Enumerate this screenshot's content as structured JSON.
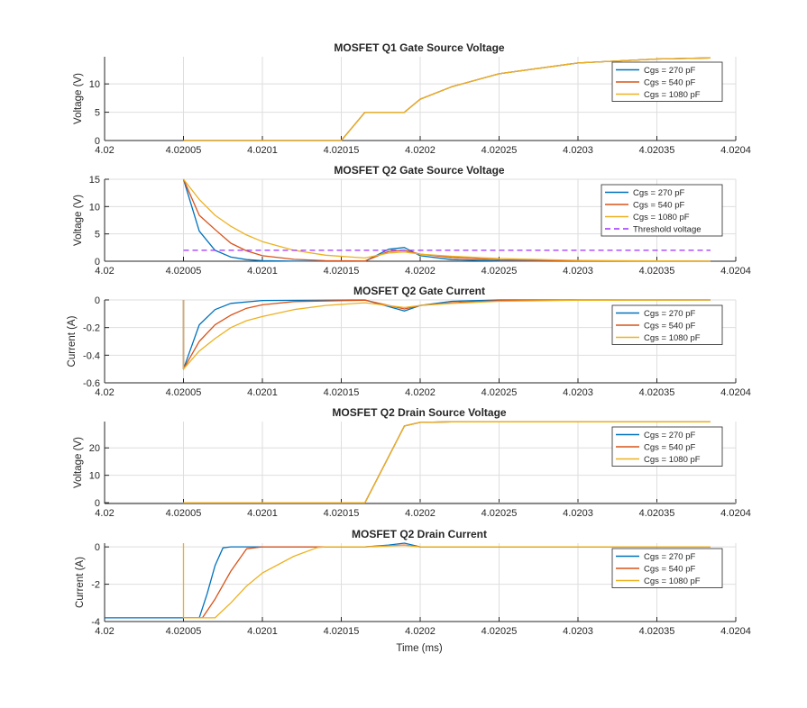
{
  "chart_data": [
    {
      "type": "line",
      "title": "MOSFET Q1 Gate Source Voltage",
      "xlabel": "",
      "ylabel": "Voltage (V)",
      "xlim": [
        4.02,
        4.0204
      ],
      "ylim": [
        0,
        14.8
      ],
      "xticks": [
        "4.02",
        "4.02005",
        "4.0201",
        "4.02015",
        "4.0202",
        "4.02025",
        "4.0203",
        "4.02035",
        "4.0204"
      ],
      "yticks": [
        "0",
        "5",
        "10"
      ],
      "grid": true,
      "legend": "top-right",
      "series": [
        {
          "name": "Cgs = 270 pF",
          "color": "#0072BD",
          "x": [
            4.02005,
            4.02015,
            4.020165,
            4.02019,
            4.0202,
            4.02022,
            4.02025,
            4.0203,
            4.02035,
            4.020384
          ],
          "y": [
            0,
            0,
            5,
            5,
            7.3,
            9.5,
            11.8,
            13.7,
            14.4,
            14.6
          ]
        },
        {
          "name": "Cgs = 540 pF",
          "color": "#D95319",
          "x": [
            4.02005,
            4.02015,
            4.020165,
            4.02019,
            4.0202,
            4.02022,
            4.02025,
            4.0203,
            4.02035,
            4.020384
          ],
          "y": [
            0,
            0,
            5,
            5,
            7.3,
            9.5,
            11.8,
            13.7,
            14.4,
            14.6
          ]
        },
        {
          "name": "Cgs = 1080 pF",
          "color": "#EDB120",
          "x": [
            4.02005,
            4.02015,
            4.020165,
            4.02019,
            4.0202,
            4.02022,
            4.02025,
            4.0203,
            4.02035,
            4.020384
          ],
          "y": [
            0,
            0,
            5,
            5,
            7.3,
            9.5,
            11.8,
            13.7,
            14.4,
            14.6
          ]
        }
      ]
    },
    {
      "type": "line",
      "title": "MOSFET Q2 Gate Source Voltage",
      "xlabel": "",
      "ylabel": "Voltage (V)",
      "xlim": [
        4.02,
        4.0204
      ],
      "ylim": [
        0,
        15
      ],
      "xticks": [
        "4.02",
        "4.02005",
        "4.0201",
        "4.02015",
        "4.0202",
        "4.02025",
        "4.0203",
        "4.02035",
        "4.0204"
      ],
      "yticks": [
        "0",
        "5",
        "10",
        "15"
      ],
      "grid": true,
      "legend": "top-right",
      "series": [
        {
          "name": "Cgs = 270 pF",
          "color": "#0072BD",
          "x": [
            4.02005,
            4.02006,
            4.02007,
            4.02008,
            4.02009,
            4.0201,
            4.02012,
            4.020165,
            4.02018,
            4.02019,
            4.0202,
            4.02022,
            4.02025,
            4.0203,
            4.020384
          ],
          "y": [
            15,
            5.5,
            2.0,
            0.75,
            0.3,
            0.1,
            0.02,
            0,
            2.2,
            2.5,
            1.0,
            0.3,
            0.05,
            0,
            0
          ]
        },
        {
          "name": "Cgs = 540 pF",
          "color": "#D95319",
          "x": [
            4.02005,
            4.02006,
            4.02007,
            4.02008,
            4.02009,
            4.0201,
            4.02012,
            4.02014,
            4.020165,
            4.02018,
            4.02019,
            4.0202,
            4.02022,
            4.02025,
            4.0203,
            4.020384
          ],
          "y": [
            15,
            8.4,
            5.8,
            3.3,
            1.9,
            1.0,
            0.35,
            0.1,
            0.03,
            1.8,
            2.0,
            1.3,
            0.7,
            0.25,
            0.05,
            0
          ]
        },
        {
          "name": "Cgs = 1080 pF",
          "color": "#EDB120",
          "x": [
            4.02005,
            4.02006,
            4.02007,
            4.02008,
            4.02009,
            4.0201,
            4.02012,
            4.02014,
            4.020165,
            4.02018,
            4.02019,
            4.0202,
            4.02022,
            4.02025,
            4.0203,
            4.02035,
            4.020384
          ],
          "y": [
            15,
            11.3,
            8.4,
            6.4,
            4.8,
            3.6,
            2.0,
            1.1,
            0.6,
            1.5,
            1.7,
            1.3,
            0.9,
            0.5,
            0.15,
            0.05,
            0.02
          ]
        },
        {
          "name": "Threshold voltage",
          "color": "#9B30FF",
          "dashed": true,
          "x": [
            4.02005,
            4.020384
          ],
          "y": [
            2,
            2
          ]
        }
      ]
    },
    {
      "type": "line",
      "title": "MOSFET Q2 Gate Current",
      "xlabel": "",
      "ylabel": "Current (A)",
      "xlim": [
        4.02,
        4.0204
      ],
      "ylim": [
        -0.6,
        0
      ],
      "xticks": [
        "4.02",
        "4.02005",
        "4.0201",
        "4.02015",
        "4.0202",
        "4.02025",
        "4.0203",
        "4.02035",
        "4.0204"
      ],
      "yticks": [
        "-0.6",
        "-0.4",
        "-0.2",
        "0"
      ],
      "grid": true,
      "legend": "top-right",
      "series": [
        {
          "name": "Cgs = 270 pF",
          "color": "#0072BD",
          "x": [
            4.02005,
            4.02005,
            4.02006,
            4.02007,
            4.02008,
            4.0201,
            4.020165,
            4.02019,
            4.0202,
            4.02022,
            4.02025,
            4.020384
          ],
          "y": [
            0,
            -0.5,
            -0.18,
            -0.07,
            -0.025,
            -0.004,
            0,
            -0.08,
            -0.04,
            -0.01,
            0,
            0
          ]
        },
        {
          "name": "Cgs = 540 pF",
          "color": "#D95319",
          "x": [
            4.02005,
            4.02005,
            4.02006,
            4.02007,
            4.02008,
            4.02009,
            4.0201,
            4.02012,
            4.020165,
            4.02019,
            4.0202,
            4.02022,
            4.02025,
            4.0203,
            4.020384
          ],
          "y": [
            0,
            -0.5,
            -0.3,
            -0.18,
            -0.11,
            -0.06,
            -0.035,
            -0.012,
            -0.002,
            -0.065,
            -0.04,
            -0.02,
            -0.005,
            0,
            0
          ]
        },
        {
          "name": "Cgs = 1080 pF",
          "color": "#EDB120",
          "x": [
            4.02005,
            4.02005,
            4.02006,
            4.02007,
            4.02008,
            4.02009,
            4.0201,
            4.02012,
            4.02014,
            4.020165,
            4.02019,
            4.0202,
            4.02022,
            4.02025,
            4.0203,
            4.020384
          ],
          "y": [
            0,
            -0.5,
            -0.37,
            -0.28,
            -0.2,
            -0.15,
            -0.12,
            -0.07,
            -0.04,
            -0.02,
            -0.055,
            -0.04,
            -0.025,
            -0.01,
            -0.002,
            0
          ]
        }
      ]
    },
    {
      "type": "line",
      "title": "MOSFET Q2 Drain Source Voltage",
      "xlabel": "",
      "ylabel": "Voltage (V)",
      "xlim": [
        4.02,
        4.0204
      ],
      "ylim": [
        -0.3,
        29.6
      ],
      "xticks": [
        "4.02",
        "4.02005",
        "4.0201",
        "4.02015",
        "4.0202",
        "4.02025",
        "4.0203",
        "4.02035",
        "4.0204"
      ],
      "yticks": [
        "0",
        "10",
        "20"
      ],
      "grid": true,
      "legend": "top-right",
      "series": [
        {
          "name": "Cgs = 270 pF",
          "color": "#0072BD",
          "x": [
            4.02005,
            4.020165,
            4.02019,
            4.0202,
            4.02022,
            4.020384
          ],
          "y": [
            0,
            0,
            28,
            29.3,
            29.5,
            29.5
          ]
        },
        {
          "name": "Cgs = 540 pF",
          "color": "#D95319",
          "x": [
            4.02005,
            4.020165,
            4.02019,
            4.0202,
            4.02022,
            4.020384
          ],
          "y": [
            0,
            0,
            28,
            29.3,
            29.5,
            29.5
          ]
        },
        {
          "name": "Cgs = 1080 pF",
          "color": "#EDB120",
          "x": [
            4.02005,
            4.020165,
            4.02019,
            4.0202,
            4.02022,
            4.020384
          ],
          "y": [
            0,
            0,
            28,
            29.3,
            29.5,
            29.5
          ]
        }
      ]
    },
    {
      "type": "line",
      "title": "MOSFET Q2 Drain Current",
      "xlabel": "Time (ms)",
      "ylabel": "Current (A)",
      "xlim": [
        4.02,
        4.0204
      ],
      "ylim": [
        -4,
        0.2
      ],
      "xticks": [
        "4.02",
        "4.02005",
        "4.0201",
        "4.02015",
        "4.0202",
        "4.02025",
        "4.0203",
        "4.02035",
        "4.0204"
      ],
      "yticks": [
        "-4",
        "-2",
        "0"
      ],
      "grid": true,
      "legend": "top-right",
      "series": [
        {
          "name": "Cgs = 270 pF",
          "color": "#0072BD",
          "x": [
            4.02,
            4.02006,
            4.020065,
            4.02007,
            4.020075,
            4.02008,
            4.020165,
            4.02018,
            4.02019,
            4.0202,
            4.020384
          ],
          "y": [
            -3.8,
            -3.8,
            -2.5,
            -1.0,
            -0.05,
            0,
            0,
            0.1,
            0.2,
            0,
            0
          ]
        },
        {
          "name": "Cgs = 540 pF",
          "color": "#D95319",
          "x": [
            4.02005,
            4.020062,
            4.02007,
            4.02008,
            4.02009,
            4.0201,
            4.020165,
            4.02019,
            4.0202,
            4.020384
          ],
          "y": [
            -3.8,
            -3.8,
            -2.8,
            -1.3,
            -0.1,
            0,
            0,
            0.1,
            0,
            0
          ]
        },
        {
          "name": "Cgs = 1080 pF",
          "color": "#EDB120",
          "x": [
            4.02005,
            4.02005,
            4.02005,
            4.02007,
            4.02008,
            4.02009,
            4.0201,
            4.02012,
            4.020135,
            4.02014,
            4.020165,
            4.02019,
            4.0202,
            4.020384
          ],
          "y": [
            0.2,
            -3.8,
            -3.8,
            -3.8,
            -3.0,
            -2.1,
            -1.4,
            -0.5,
            -0.03,
            0,
            0,
            0.08,
            0,
            0
          ]
        }
      ]
    }
  ]
}
